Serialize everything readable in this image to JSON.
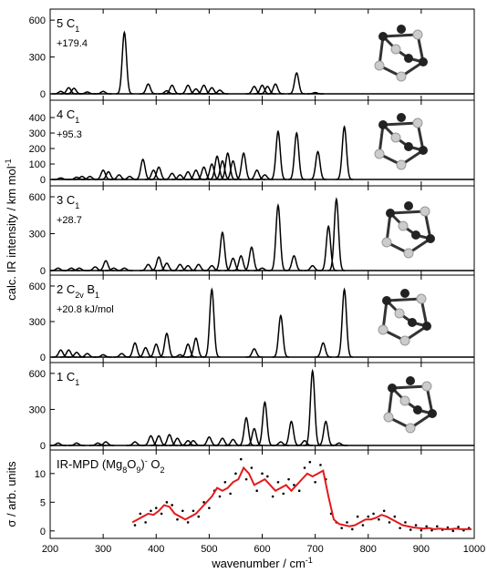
{
  "chart_data": [
    {
      "type": "spectrum",
      "title": [
        {
          "text": "5 C"
        },
        {
          "sub": "1"
        }
      ],
      "annotation": "+179.4",
      "x": [
        220,
        235,
        245,
        270,
        300,
        340,
        385,
        420,
        430,
        460,
        475,
        490,
        505,
        520,
        585,
        600,
        610,
        625,
        665,
        700
      ],
      "values": [
        20,
        50,
        45,
        15,
        20,
        500,
        80,
        25,
        70,
        70,
        40,
        70,
        50,
        30,
        60,
        70,
        60,
        80,
        170,
        10
      ],
      "color": "#000000",
      "xlim": [
        200,
        1000
      ],
      "xticks": [
        200,
        300,
        400,
        500,
        600,
        700,
        800,
        900,
        1000
      ],
      "ylim": [
        -52,
        690
      ],
      "yticks": [
        0,
        300,
        600
      ]
    },
    {
      "type": "spectrum",
      "title": [
        {
          "text": "4 C"
        },
        {
          "sub": "1"
        }
      ],
      "annotation": "+95.3",
      "ylabel": [
        {
          "text": "calc. IR intensity / km mol"
        },
        {
          "sup": "-1"
        }
      ],
      "x": [
        220,
        250,
        260,
        275,
        300,
        310,
        330,
        350,
        375,
        395,
        405,
        430,
        445,
        460,
        475,
        490,
        505,
        515,
        525,
        535,
        545,
        565,
        590,
        605,
        630,
        665,
        705,
        755
      ],
      "values": [
        10,
        15,
        20,
        20,
        60,
        50,
        30,
        20,
        130,
        60,
        80,
        40,
        30,
        50,
        60,
        80,
        100,
        150,
        120,
        170,
        120,
        170,
        60,
        30,
        310,
        300,
        180,
        340
      ],
      "color": "#000000",
      "xlim": [
        200,
        1000
      ],
      "xticks": [
        200,
        300,
        400,
        500,
        600,
        700,
        800,
        900,
        1000
      ],
      "ylim": [
        -41,
        512
      ],
      "yticks": [
        0,
        100,
        200,
        300,
        400
      ]
    },
    {
      "type": "spectrum",
      "title": [
        {
          "text": "3 C"
        },
        {
          "sub": "1"
        }
      ],
      "annotation": "+28.7",
      "x": [
        215,
        240,
        255,
        285,
        305,
        320,
        340,
        385,
        405,
        420,
        445,
        460,
        480,
        505,
        525,
        545,
        560,
        580,
        600,
        630,
        660,
        695,
        725,
        740
      ],
      "values": [
        20,
        20,
        20,
        30,
        80,
        20,
        20,
        50,
        110,
        60,
        50,
        40,
        50,
        40,
        310,
        100,
        120,
        190,
        20,
        530,
        120,
        40,
        360,
        580
      ],
      "color": "#000000",
      "xlim": [
        200,
        1000
      ],
      "xticks": [
        200,
        300,
        400,
        500,
        600,
        700,
        800,
        900,
        1000
      ],
      "ylim": [
        -37,
        689
      ],
      "yticks": [
        0,
        300,
        600
      ]
    },
    {
      "type": "spectrum",
      "title": [
        {
          "text": "2 C"
        },
        {
          "sub": "2v"
        },
        {
          "text": " B"
        },
        {
          "sub": "1"
        }
      ],
      "annotation": "+20.8 kJ/mol",
      "x": [
        220,
        235,
        250,
        270,
        300,
        335,
        360,
        380,
        400,
        420,
        445,
        460,
        475,
        505,
        585,
        635,
        715,
        755
      ],
      "values": [
        60,
        60,
        40,
        30,
        20,
        30,
        120,
        80,
        110,
        200,
        20,
        110,
        160,
        570,
        70,
        350,
        120,
        570
      ],
      "color": "#000000",
      "xlim": [
        200,
        1000
      ],
      "xticks": [
        200,
        300,
        400,
        500,
        600,
        700,
        800,
        900,
        1000
      ],
      "ylim": [
        -46,
        692
      ],
      "yticks": [
        0,
        300,
        600
      ]
    },
    {
      "type": "spectrum",
      "title": [
        {
          "text": "1 C"
        },
        {
          "sub": "1"
        }
      ],
      "x": [
        215,
        250,
        290,
        305,
        360,
        390,
        405,
        425,
        440,
        460,
        470,
        500,
        525,
        545,
        570,
        585,
        605,
        635,
        655,
        680,
        695,
        720,
        745
      ],
      "values": [
        20,
        20,
        20,
        30,
        30,
        80,
        80,
        90,
        60,
        40,
        40,
        70,
        60,
        50,
        230,
        140,
        360,
        30,
        200,
        40,
        620,
        200,
        20
      ],
      "color": "#000000",
      "xlim": [
        200,
        1000
      ],
      "xticks": [
        200,
        300,
        400,
        500,
        600,
        700,
        800,
        900,
        1000
      ],
      "ylim": [
        -38,
        690
      ],
      "yticks": [
        0,
        300,
        600
      ]
    },
    {
      "type": "measured",
      "title": [
        {
          "text": "IR-MPD (Mg"
        },
        {
          "sub": "8"
        },
        {
          "text": "O"
        },
        {
          "sub": "9"
        },
        {
          "text": ")"
        },
        {
          "sup": "-"
        },
        {
          "text": " O"
        },
        {
          "sub": "2"
        }
      ],
      "ylabel": [
        {
          "text": "σ / arb. units"
        }
      ],
      "xlabel": [
        {
          "text": "wavenumber / cm"
        },
        {
          "sup": "-1"
        }
      ],
      "series": [
        {
          "type": "scatter",
          "color": "#000000",
          "x": [
            360,
            370,
            380,
            390,
            400,
            410,
            420,
            430,
            440,
            450,
            460,
            470,
            480,
            490,
            500,
            510,
            520,
            530,
            540,
            550,
            560,
            570,
            580,
            590,
            600,
            610,
            620,
            630,
            640,
            650,
            660,
            670,
            680,
            690,
            700,
            710,
            720,
            730,
            740,
            750,
            760,
            770,
            780,
            790,
            800,
            810,
            820,
            830,
            840,
            850,
            860,
            870,
            880,
            890,
            900,
            910,
            920,
            930,
            940,
            950,
            960,
            970,
            980,
            990
          ],
          "values": [
            1,
            3,
            1.5,
            3.5,
            4,
            3,
            5,
            4.5,
            2,
            3.5,
            1.5,
            3.5,
            2.5,
            5,
            4,
            7,
            6,
            8.5,
            6.5,
            10,
            12.5,
            9,
            11,
            7,
            10,
            9.5,
            6,
            8.5,
            6.5,
            9,
            8,
            7,
            11,
            12,
            8.5,
            11.5,
            9,
            3,
            1.5,
            0.5,
            1.5,
            0.3,
            2.5,
            1,
            2.5,
            3,
            2,
            3.5,
            1.5,
            2.5,
            0.5,
            1.5,
            0.2,
            1,
            0.1,
            0.8,
            0.1,
            0.8,
            0.2,
            0.6,
            0,
            0.7,
            0.1,
            0.5
          ]
        },
        {
          "type": "line",
          "color": "#e31a1c",
          "x": [
            355,
            365,
            375,
            385,
            395,
            405,
            415,
            425,
            435,
            445,
            455,
            465,
            475,
            485,
            495,
            505,
            515,
            525,
            535,
            545,
            555,
            565,
            575,
            585,
            595,
            605,
            615,
            625,
            635,
            645,
            655,
            665,
            675,
            685,
            695,
            705,
            715,
            725,
            735,
            745,
            755,
            765,
            775,
            785,
            795,
            805,
            815,
            825,
            835,
            845,
            855,
            865,
            875,
            885,
            895,
            905,
            915,
            925,
            935,
            945,
            955,
            965,
            975,
            985,
            995
          ],
          "values": [
            1.5,
            2,
            2.5,
            3,
            2.8,
            3.5,
            4.5,
            4.2,
            3,
            2.5,
            2,
            2.5,
            3,
            4,
            5,
            6,
            7.5,
            7,
            7.5,
            8.5,
            9,
            11,
            10,
            8,
            8.5,
            9,
            8,
            7,
            7.5,
            8,
            7,
            8,
            9,
            10,
            9.5,
            10,
            10.5,
            6,
            2,
            1.2,
            1,
            0.8,
            1,
            1.5,
            2,
            2,
            2.3,
            2.8,
            2.5,
            2,
            1.5,
            1,
            0.8,
            0.6,
            0.5,
            0.4,
            0.5,
            0.3,
            0.4,
            0.3,
            0.3,
            0.4,
            0.3,
            0.3,
            0.3
          ]
        }
      ],
      "xlim": [
        200,
        1000
      ],
      "xticks": [
        200,
        300,
        400,
        500,
        600,
        700,
        800,
        900,
        1000
      ],
      "ylim": [
        -1.3,
        14.1
      ],
      "yticks": [
        0,
        5,
        10
      ]
    }
  ]
}
